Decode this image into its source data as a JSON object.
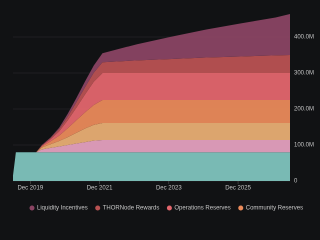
{
  "chart_data": {
    "type": "stacked-area",
    "x": [
      "2019-06",
      "2019-07",
      "2020-02",
      "2020-04",
      "2020-07",
      "2020-10",
      "2021-01",
      "2021-04",
      "2021-07",
      "2021-10",
      "2022-01",
      "2023-01",
      "2024-01",
      "2025-01",
      "2026-01",
      "2027-01",
      "2027-06"
    ],
    "xlim": [
      "2019-06",
      "2027-06"
    ],
    "xticks": [
      {
        "value": "2019-12",
        "label": "Dec 2019"
      },
      {
        "value": "2021-12",
        "label": "Dec 2021"
      },
      {
        "value": "2023-12",
        "label": "Dec 2023"
      },
      {
        "value": "2025-12",
        "label": "Dec 2025"
      }
    ],
    "ylim": [
      0,
      500000000
    ],
    "yticks": [
      0,
      {
        "value": 100000000,
        "label": "100.0M"
      },
      {
        "value": 200000000,
        "label": "200.0M"
      },
      {
        "value": 300000000,
        "label": "300.0M"
      },
      {
        "value": 400000000,
        "label": "400.0M"
      }
    ],
    "grid": true,
    "series": [
      {
        "color": "#7fc4bd",
        "values": [
          15000000,
          80000000,
          80000000,
          80000000,
          80000000,
          80000000,
          80000000,
          80000000,
          80000000,
          80000000,
          80000000,
          80000000,
          80000000,
          80000000,
          80000000,
          80000000,
          80000000
        ]
      },
      {
        "color": "#e4a0be",
        "values": [
          0,
          0,
          0,
          8000000,
          12000000,
          16000000,
          20000000,
          24000000,
          28000000,
          32000000,
          34000000,
          34000000,
          34000000,
          34000000,
          34000000,
          34000000,
          34000000
        ]
      },
      {
        "color": "#e8ae73",
        "values": [
          0,
          0,
          0,
          5000000,
          10000000,
          15000000,
          22000000,
          30000000,
          38000000,
          44000000,
          47000000,
          47000000,
          47000000,
          47000000,
          47000000,
          47000000,
          47000000
        ]
      },
      {
        "name": "Community Reserves",
        "color": "#ea8a5a",
        "values": [
          0,
          0,
          0,
          3000000,
          8000000,
          15000000,
          25000000,
          35000000,
          45000000,
          55000000,
          64000000,
          64000000,
          64000000,
          64000000,
          64000000,
          64000000,
          64000000
        ]
      },
      {
        "name": "Operations Reserves",
        "color": "#e3666d",
        "values": [
          0,
          0,
          0,
          2000000,
          6000000,
          12000000,
          22000000,
          35000000,
          50000000,
          65000000,
          75000000,
          75000000,
          75000000,
          75000000,
          75000000,
          75000000,
          75000000
        ]
      },
      {
        "name": "THORNode Rewards",
        "color": "#b95252",
        "values": [
          0,
          0,
          0,
          1000000,
          3000000,
          6000000,
          10000000,
          15000000,
          20000000,
          25000000,
          30000000,
          35000000,
          39000000,
          43000000,
          46000000,
          49000000,
          50000000
        ]
      },
      {
        "name": "Liquidity Incentives",
        "color": "#8a4463",
        "values": [
          0,
          0,
          0,
          1000000,
          2000000,
          4000000,
          8000000,
          12000000,
          16000000,
          20000000,
          25000000,
          45000000,
          62000000,
          78000000,
          92000000,
          105000000,
          114000000
        ]
      }
    ]
  }
}
